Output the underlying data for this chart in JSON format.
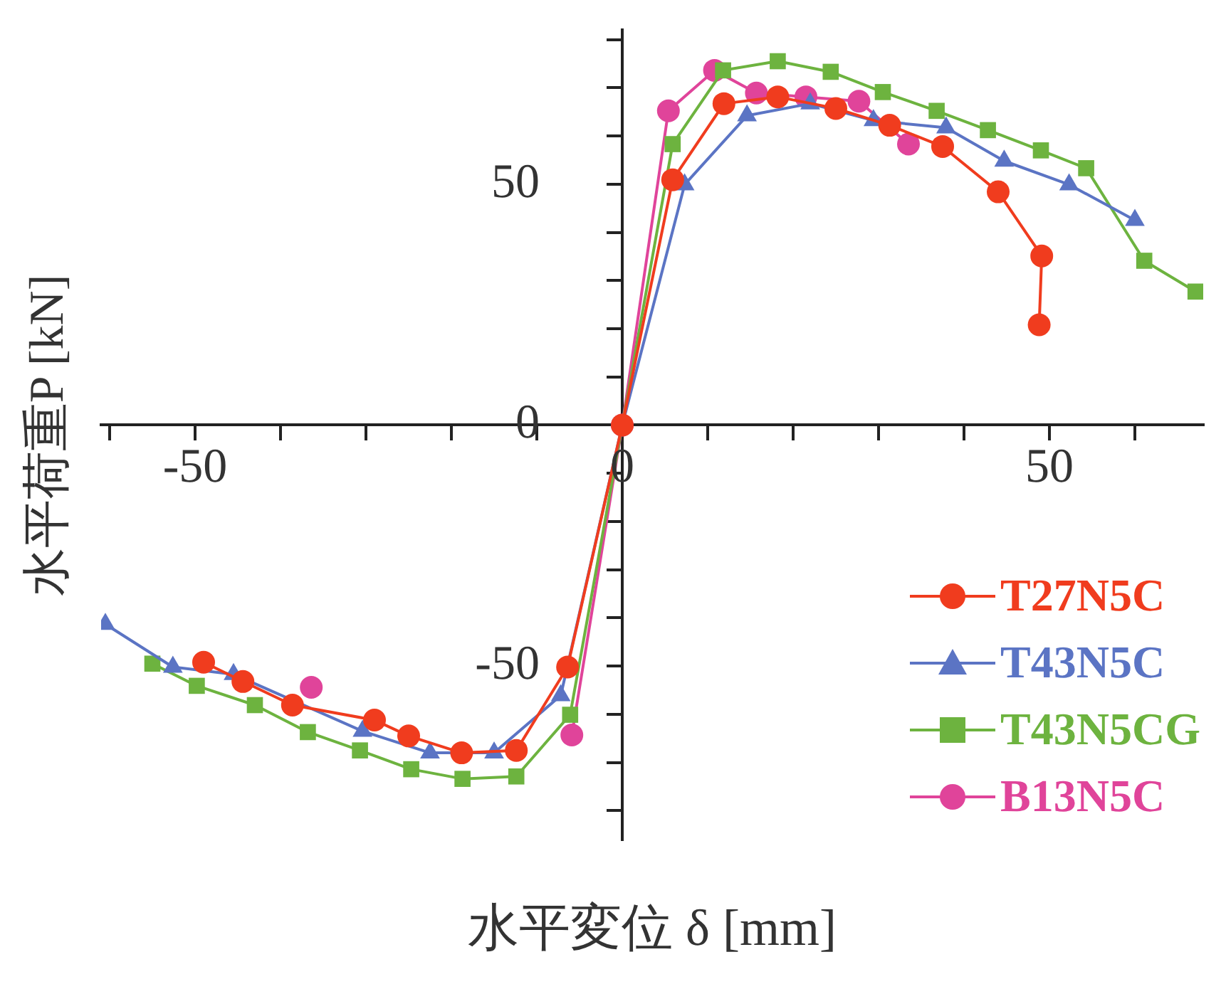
{
  "chart_data": {
    "type": "line",
    "xlabel": "水平変位 δ [mm]",
    "ylabel": "水平荷重P [kN]",
    "xlim": [
      -61,
      68
    ],
    "ylim": [
      -86,
      82
    ],
    "xticks": [
      {
        "value": -60,
        "label": null
      },
      -50,
      {
        "value": -40,
        "label": null
      },
      {
        "value": -30,
        "label": null
      },
      {
        "value": -20,
        "label": null
      },
      {
        "value": -10,
        "label": null
      },
      0,
      {
        "value": 10,
        "label": null
      },
      {
        "value": 20,
        "label": null
      },
      {
        "value": 30,
        "label": null
      },
      {
        "value": 40,
        "label": null
      },
      50,
      {
        "value": 60,
        "label": null
      }
    ],
    "yticks": [
      {
        "value": -80,
        "label": null
      },
      {
        "value": -70,
        "label": null
      },
      {
        "value": -60,
        "label": null
      },
      -50,
      {
        "value": -40,
        "label": null
      },
      {
        "value": -30,
        "label": null
      },
      {
        "value": -20,
        "label": null
      },
      {
        "value": -10,
        "label": null
      },
      0,
      {
        "value": 10,
        "label": null
      },
      {
        "value": 20,
        "label": null
      },
      {
        "value": 30,
        "label": null
      },
      {
        "value": 40,
        "label": null
      },
      50,
      {
        "value": 60,
        "label": null
      },
      {
        "value": 70,
        "label": null
      },
      {
        "value": 80,
        "label": null
      }
    ],
    "grid": false,
    "legend": "bottom right",
    "line_style": "solid",
    "series": [
      {
        "name": "T27N5C",
        "color": "#f03c1e",
        "marker": "circle",
        "x": [
          -49.0,
          -44.4,
          -38.6,
          -29.0,
          -25.0,
          -18.8,
          -12.4,
          -6.4,
          0,
          5.9,
          11.9,
          18.2,
          25.0,
          31.3,
          37.5,
          44.0,
          49.1,
          48.8
        ],
        "values": [
          -49.2,
          -53.2,
          -58.1,
          -61.2,
          -64.5,
          -68.0,
          -67.5,
          -50.2,
          0,
          50.9,
          66.7,
          68.1,
          65.7,
          62.2,
          57.8,
          48.4,
          35.1,
          20.8
        ]
      },
      {
        "name": "T43N5C",
        "color": "#5b74c4",
        "marker": "triangle",
        "x": [
          -60.5,
          -52.6,
          -45.5,
          -30.4,
          -22.5,
          -15.0,
          -7.2,
          0,
          7.3,
          14.6,
          22.0,
          29.4,
          37.9,
          44.7,
          52.3,
          60.0
        ],
        "values": [
          -41.3,
          -50.2,
          -51.7,
          -63.5,
          -68.0,
          -68.0,
          -56.1,
          0,
          49.9,
          64.2,
          66.7,
          63.2,
          61.7,
          54.8,
          49.9,
          42.5
        ]
      },
      {
        "name": "T43N5CG",
        "color": "#6db33f",
        "marker": "square",
        "x": [
          -55.0,
          -49.8,
          -43.0,
          -36.8,
          -30.7,
          -24.7,
          -18.7,
          -12.4,
          -6.1,
          0,
          5.9,
          11.8,
          18.2,
          24.4,
          30.5,
          36.8,
          42.8,
          49.0,
          54.3,
          61.1,
          67.1
        ],
        "values": [
          -49.5,
          -54.1,
          -58.1,
          -63.7,
          -67.5,
          -71.4,
          -73.4,
          -72.9,
          -60.1,
          0,
          58.3,
          73.6,
          75.5,
          73.3,
          69.1,
          65.2,
          61.2,
          57.0,
          53.3,
          34.1,
          27.7
        ]
      },
      {
        "name": "B13N5C",
        "color": "#e0449a",
        "marker": "circle",
        "x": [
          -36.4,
          -30.5,
          -24.5,
          -18.5,
          -12.4,
          -5.9,
          0,
          5.4,
          10.8,
          15.7,
          21.5,
          27.7,
          33.5
        ],
        "values": [
          -54.4,
          null,
          null,
          null,
          null,
          -64.3,
          0,
          65.2,
          73.6,
          68.9,
          68.1,
          67.2,
          58.3
        ]
      }
    ]
  }
}
